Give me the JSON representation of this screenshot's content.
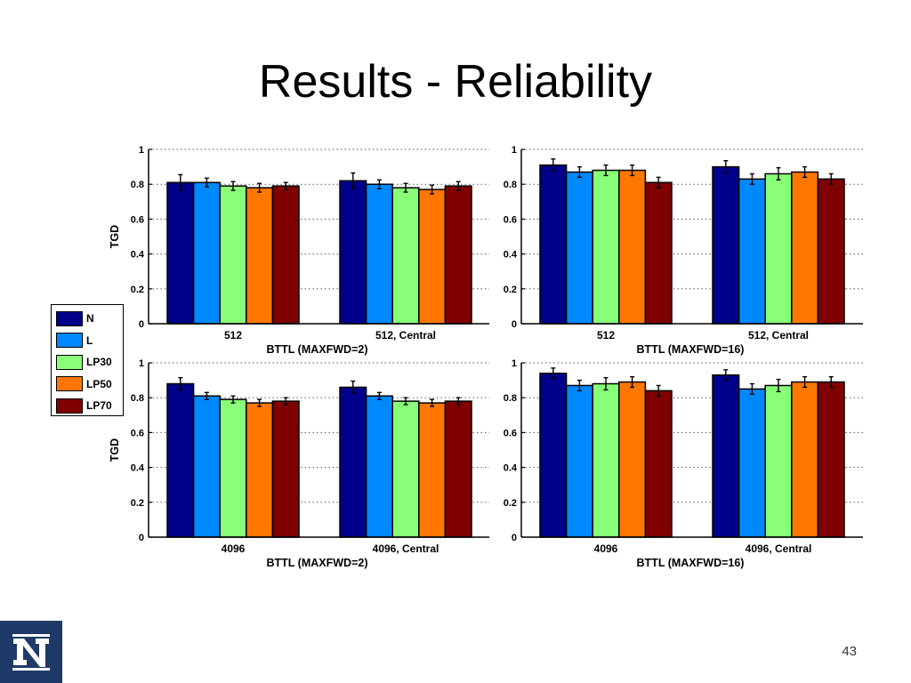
{
  "slide": {
    "title": "Results - Reliability",
    "page_number": "43"
  },
  "colors": {
    "N": "#00008b",
    "L": "#0088ff",
    "LP30": "#88ff77",
    "LP50": "#ff7700",
    "LP70": "#800000"
  },
  "legend": [
    {
      "label": "N",
      "color": "#00008b"
    },
    {
      "label": "L",
      "color": "#0088ff"
    },
    {
      "label": "LP30",
      "color": "#88ff77"
    },
    {
      "label": "LP50",
      "color": "#ff7700"
    },
    {
      "label": "LP70",
      "color": "#800000"
    }
  ],
  "chart_data": [
    {
      "type": "bar",
      "ylabel": "TGD",
      "xlabel": "BTTL (MAXFWD=2)",
      "ylim": [
        0,
        1
      ],
      "yticks": [
        "0",
        "0.2",
        "0.4",
        "0.6",
        "0.8",
        "1"
      ],
      "grid": true,
      "categories": [
        "512",
        "512, Central"
      ],
      "series": [
        {
          "name": "N",
          "values": [
            0.81,
            0.82
          ],
          "errors": [
            0.045,
            0.045
          ]
        },
        {
          "name": "L",
          "values": [
            0.81,
            0.8
          ],
          "errors": [
            0.025,
            0.025
          ]
        },
        {
          "name": "LP30",
          "values": [
            0.79,
            0.78
          ],
          "errors": [
            0.025,
            0.025
          ]
        },
        {
          "name": "LP50",
          "values": [
            0.78,
            0.77
          ],
          "errors": [
            0.025,
            0.025
          ]
        },
        {
          "name": "LP70",
          "values": [
            0.79,
            0.79
          ],
          "errors": [
            0.02,
            0.025
          ]
        }
      ]
    },
    {
      "type": "bar",
      "ylabel": "",
      "xlabel": "BTTL (MAXFWD=16)",
      "ylim": [
        0,
        1
      ],
      "yticks": [
        "0",
        "0.2",
        "0.4",
        "0.6",
        "0.8",
        "1"
      ],
      "grid": true,
      "categories": [
        "512",
        "512, Central"
      ],
      "series": [
        {
          "name": "N",
          "values": [
            0.91,
            0.9
          ],
          "errors": [
            0.035,
            0.035
          ]
        },
        {
          "name": "L",
          "values": [
            0.87,
            0.83
          ],
          "errors": [
            0.03,
            0.03
          ]
        },
        {
          "name": "LP30",
          "values": [
            0.88,
            0.86
          ],
          "errors": [
            0.03,
            0.035
          ]
        },
        {
          "name": "LP50",
          "values": [
            0.88,
            0.87
          ],
          "errors": [
            0.03,
            0.03
          ]
        },
        {
          "name": "LP70",
          "values": [
            0.81,
            0.83
          ],
          "errors": [
            0.03,
            0.03
          ]
        }
      ]
    },
    {
      "type": "bar",
      "ylabel": "TGD",
      "xlabel": "BTTL (MAXFWD=2)",
      "ylim": [
        0,
        1
      ],
      "yticks": [
        "0",
        "0.2",
        "0.4",
        "0.6",
        "0.8",
        "1"
      ],
      "grid": true,
      "categories": [
        "4096",
        "4096, Central"
      ],
      "series": [
        {
          "name": "N",
          "values": [
            0.88,
            0.86
          ],
          "errors": [
            0.035,
            0.035
          ]
        },
        {
          "name": "L",
          "values": [
            0.81,
            0.81
          ],
          "errors": [
            0.02,
            0.02
          ]
        },
        {
          "name": "LP30",
          "values": [
            0.79,
            0.78
          ],
          "errors": [
            0.02,
            0.02
          ]
        },
        {
          "name": "LP50",
          "values": [
            0.77,
            0.77
          ],
          "errors": [
            0.02,
            0.02
          ]
        },
        {
          "name": "LP70",
          "values": [
            0.78,
            0.78
          ],
          "errors": [
            0.02,
            0.02
          ]
        }
      ]
    },
    {
      "type": "bar",
      "ylabel": "",
      "xlabel": "BTTL (MAXFWD=16)",
      "ylim": [
        0,
        1
      ],
      "yticks": [
        "0",
        "0.2",
        "0.4",
        "0.6",
        "0.8",
        "1"
      ],
      "grid": true,
      "categories": [
        "4096",
        "4096, Central"
      ],
      "series": [
        {
          "name": "N",
          "values": [
            0.94,
            0.93
          ],
          "errors": [
            0.03,
            0.03
          ]
        },
        {
          "name": "L",
          "values": [
            0.87,
            0.85
          ],
          "errors": [
            0.03,
            0.03
          ]
        },
        {
          "name": "LP30",
          "values": [
            0.88,
            0.87
          ],
          "errors": [
            0.035,
            0.035
          ]
        },
        {
          "name": "LP50",
          "values": [
            0.89,
            0.89
          ],
          "errors": [
            0.03,
            0.03
          ]
        },
        {
          "name": "LP70",
          "values": [
            0.84,
            0.89
          ],
          "errors": [
            0.03,
            0.03
          ]
        }
      ]
    }
  ]
}
